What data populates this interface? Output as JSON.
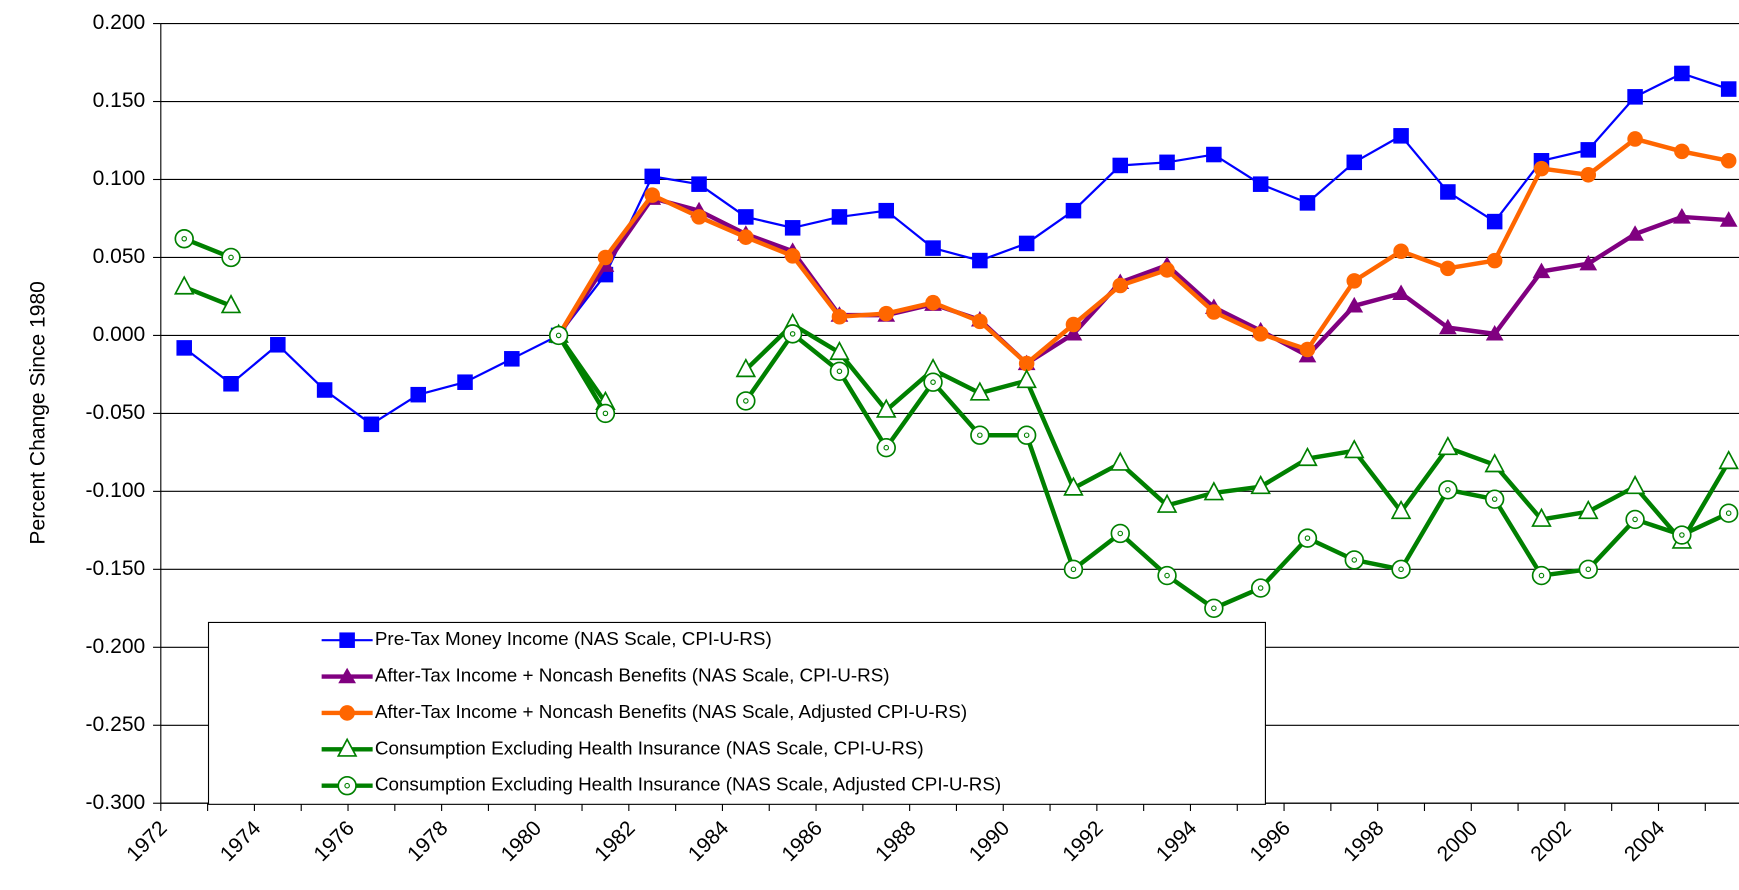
{
  "chart_data": {
    "type": "line",
    "ylabel": "Percent Change Since 1980",
    "categories": [
      "1972",
      null,
      "1974",
      null,
      "1976",
      null,
      "1978",
      null,
      "1980",
      null,
      "1982",
      null,
      "1984",
      null,
      "1986",
      null,
      "1988",
      null,
      "1990",
      null,
      "1992",
      null,
      "1994",
      null,
      "1996",
      null,
      "1998",
      null,
      "2000",
      null,
      "2002",
      null,
      "2004",
      null
    ],
    "ylim": [
      -0.3,
      0.2
    ],
    "yticks": [
      {
        "value": 0.2,
        "label": "0.200"
      },
      {
        "value": 0.15,
        "label": "0.150"
      },
      {
        "value": 0.1,
        "label": "0.100"
      },
      {
        "value": 0.05,
        "label": "0.050"
      },
      {
        "value": 0,
        "label": "0.000"
      },
      {
        "value": -0.05,
        "label": "-0.050"
      },
      {
        "value": -0.1,
        "label": "-0.100"
      },
      {
        "value": -0.15,
        "label": "-0.150"
      },
      {
        "value": -0.2,
        "label": "-0.200"
      },
      {
        "value": -0.25,
        "label": "-0.250"
      },
      {
        "value": -0.3,
        "label": "-0.300"
      }
    ],
    "grid": true,
    "legend": "lower left",
    "series": [
      {
        "name": "Pre-Tax Money Income (NAS Scale, CPI-U-RS)",
        "color": "#0000ff",
        "marker": "square",
        "line_width": 2,
        "values": [
          -0.008,
          -0.031,
          -0.006,
          -0.035,
          -0.057,
          -0.038,
          -0.03,
          -0.015,
          0.0,
          0.039,
          0.102,
          0.097,
          0.076,
          0.069,
          0.076,
          0.08,
          0.056,
          0.048,
          0.059,
          0.08,
          0.109,
          0.111,
          0.116,
          0.097,
          0.085,
          0.111,
          0.128,
          0.092,
          0.073,
          0.112,
          0.119,
          0.153,
          0.168,
          0.158
        ]
      },
      {
        "name": "After-Tax Income + Noncash Benefits (NAS Scale, CPI-U-RS)",
        "color": "#800080",
        "marker": "triangle",
        "line_width": 4,
        "values": [
          null,
          null,
          null,
          null,
          null,
          null,
          null,
          null,
          0.0,
          0.045,
          0.088,
          0.08,
          0.065,
          0.054,
          0.013,
          0.013,
          0.02,
          0.01,
          -0.018,
          0.001,
          0.034,
          0.045,
          0.018,
          0.003,
          -0.013,
          0.019,
          0.027,
          0.005,
          0.001,
          0.041,
          0.046,
          0.065,
          0.076,
          0.074
        ]
      },
      {
        "name": "After-Tax Income + Noncash Benefits (NAS Scale, Adjusted CPI-U-RS)",
        "color": "#ff6600",
        "marker": "circle",
        "line_width": 4,
        "values": [
          null,
          null,
          null,
          null,
          null,
          null,
          null,
          null,
          0.0,
          0.05,
          0.09,
          0.076,
          0.063,
          0.051,
          0.012,
          0.014,
          0.021,
          0.009,
          -0.018,
          0.007,
          0.032,
          0.042,
          0.015,
          0.001,
          -0.009,
          0.035,
          0.054,
          0.043,
          0.048,
          0.107,
          0.103,
          0.126,
          0.118,
          0.112
        ]
      },
      {
        "name": "Consumption Excluding Health Insurance (NAS Scale, CPI-U-RS)",
        "color": "#008000",
        "marker": "triangle-open",
        "line_width": 4,
        "values": [
          0.031,
          0.019,
          null,
          null,
          null,
          null,
          null,
          null,
          0.0,
          -0.043,
          null,
          null,
          -0.022,
          0.007,
          -0.011,
          -0.048,
          -0.022,
          -0.037,
          -0.029,
          -0.098,
          -0.082,
          -0.109,
          -0.101,
          -0.097,
          -0.079,
          -0.074,
          -0.113,
          -0.072,
          -0.083,
          -0.118,
          -0.113,
          -0.097,
          -0.132,
          -0.081
        ]
      },
      {
        "name": "Consumption Excluding Health Insurance (NAS Scale, Adjusted CPI-U-RS)",
        "color": "#008000",
        "marker": "circle-open",
        "line_width": 4,
        "values": [
          0.062,
          0.05,
          null,
          null,
          null,
          null,
          null,
          null,
          0.0,
          -0.05,
          null,
          null,
          -0.042,
          0.001,
          -0.023,
          -0.072,
          -0.03,
          -0.064,
          -0.064,
          -0.15,
          -0.127,
          -0.154,
          -0.175,
          -0.162,
          -0.13,
          -0.144,
          -0.15,
          -0.099,
          -0.105,
          -0.154,
          -0.15,
          -0.118,
          -0.128,
          -0.114
        ]
      }
    ]
  }
}
